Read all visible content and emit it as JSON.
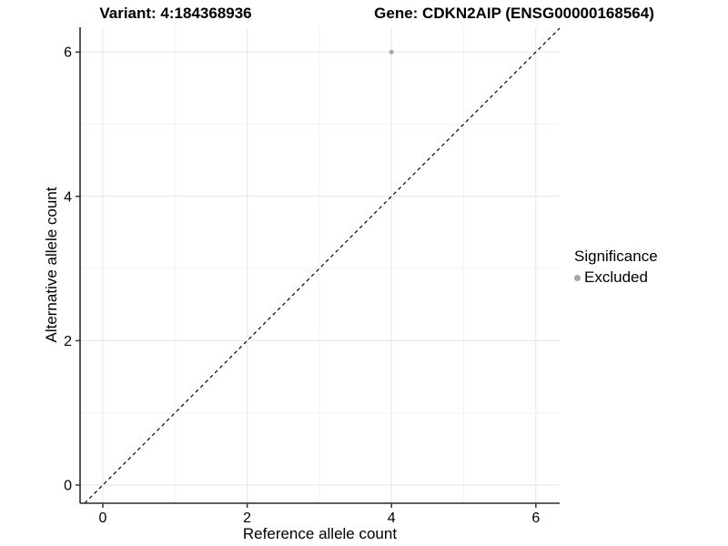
{
  "titles": {
    "variant": "Variant: 4:184368936",
    "gene": "Gene: CDKN2AIP (ENSG00000168564)"
  },
  "chart_data": {
    "type": "scatter",
    "title_left": "Variant: 4:184368936",
    "title_right": "Gene: CDKN2AIP (ENSG00000168564)",
    "xlabel": "Reference allele count",
    "ylabel": "Alternative allele count",
    "x_breaks": [
      0,
      2,
      4,
      6
    ],
    "y_breaks": [
      0,
      2,
      4,
      6
    ],
    "x_minor_breaks": [
      1,
      3,
      5
    ],
    "y_minor_breaks": [
      1,
      3,
      5
    ],
    "xlim": [
      -0.315,
      6.33
    ],
    "ylim": [
      -0.252,
      6.343
    ],
    "grid": true,
    "points": [
      {
        "x": 4,
        "y": 6,
        "significance": "Excluded"
      }
    ],
    "reference_line": {
      "slope": 1,
      "intercept": 0,
      "linetype": "dashed"
    },
    "legend": {
      "title": "Significance",
      "position": "right",
      "items": [
        {
          "label": "Excluded",
          "color": "#a6a6a6"
        }
      ]
    }
  },
  "colors": {
    "point": "#a8a8a8",
    "legend_dot": "#a6a6a6",
    "grid_major": "#e6e6e6",
    "grid_minor": "#f3f3f3",
    "axis_line": "#2b2b2b",
    "tick": "#333333",
    "reference_line": "#000000",
    "text": "#000000"
  }
}
